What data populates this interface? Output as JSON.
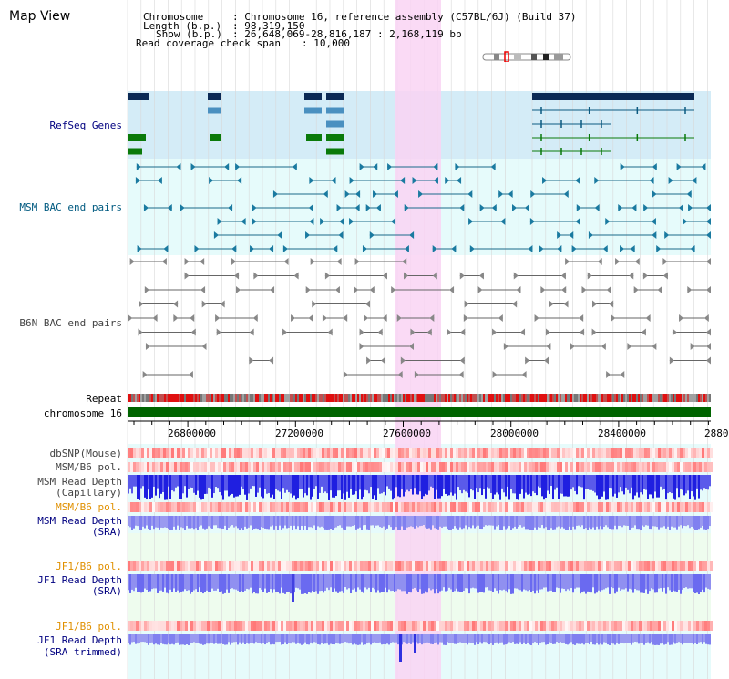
{
  "page_title": "Map View",
  "info": {
    "chromosome_label": "Chromosome",
    "chromosome_value": ": Chromosome 16, reference assembly (C57BL/6J) (Build 37)",
    "length_label": "Length (b.p.)",
    "length_value": ": 98,319,150",
    "show_label": "Show (b.p.)",
    "show_value": ": 26,648,069-28,816,187 : 2,168,119 bp",
    "coverage_label": "Read coverage check span",
    "coverage_value": ": 10,000"
  },
  "tracks": {
    "refseq": "RefSeq Genes",
    "msm_bac": "MSM BAC end pairs",
    "b6n_bac": "B6N BAC end pairs",
    "repeat": "Repeat",
    "chromosome": "chromosome 16",
    "dbsnp": "dbSNP(Mouse)",
    "msm_b6_pol_1": "MSM/B6 pol.",
    "msm_read_depth_cap_1": "MSM Read Depth",
    "msm_read_depth_cap_2": "(Capillary)",
    "msm_b6_pol_2": "MSM/B6 pol.",
    "msm_read_depth_sra_1": "MSM Read Depth",
    "msm_read_depth_sra_2": "(SRA)",
    "jf1_b6_pol_1": "JF1/B6 pol.",
    "jf1_read_depth_sra_1": "JF1 Read Depth",
    "jf1_read_depth_sra_2": "(SRA)",
    "jf1_b6_pol_2": "JF1/B6 pol.",
    "jf1_read_depth_trim_1": "JF1 Read Depth",
    "jf1_read_depth_trim_2": "(SRA trimmed)"
  },
  "axis": {
    "ticks": [
      "26800000",
      "27200000",
      "27600000",
      "28000000",
      "28400000",
      "2880"
    ]
  },
  "colors": {
    "label_blue": "#000080",
    "label_teal": "#005a80",
    "label_orange": "#e09000",
    "label_gray": "#444444",
    "refseq_bg": "#d4ecf7",
    "bac_bg": "#e6fbfb",
    "highlight": "#f9d4f3",
    "gene_dark": "#0b2a55",
    "gene_mid": "#4a90c0",
    "gene_green": "#0a7a0a",
    "chrom_green": "#006400",
    "depth_blue": "#2020e0",
    "depth_light": "#8c8cf0"
  }
}
